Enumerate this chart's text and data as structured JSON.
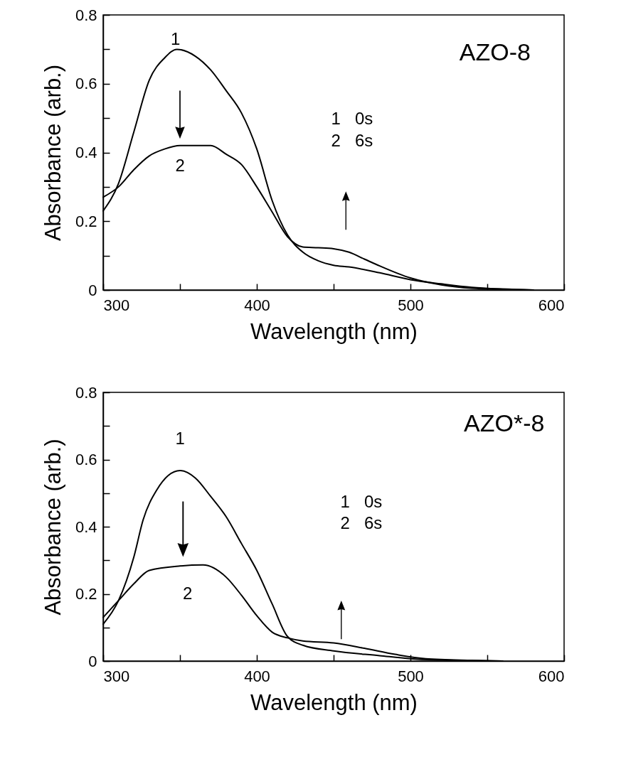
{
  "chart_data": [
    {
      "type": "line",
      "xlabel": "Wavelength (nm)",
      "ylabel": "Absorbance (arb.)",
      "xlim": [
        300,
        600
      ],
      "ylim": [
        0,
        0.8
      ],
      "xticks": [
        300,
        {
          "value": 350,
          "label": null
        },
        400,
        {
          "value": 450,
          "label": null
        },
        500,
        {
          "value": 550,
          "label": null
        },
        600
      ],
      "yticks": [
        0,
        {
          "value": 0.1,
          "label": null
        },
        0.2,
        {
          "value": 0.3,
          "label": null
        },
        0.4,
        {
          "value": 0.5,
          "label": null
        },
        0.6,
        {
          "value": 0.7,
          "label": null
        },
        0.8
      ],
      "grid": false,
      "marker": "none",
      "line_style": "solid",
      "series": [
        {
          "color": "#000000",
          "x": [
            300,
            310,
            320,
            330,
            340,
            348,
            360,
            370,
            380,
            390,
            400,
            410,
            420,
            430,
            440,
            450,
            460,
            480,
            500,
            520,
            540,
            560,
            580
          ],
          "values": [
            0.23,
            0.31,
            0.46,
            0.61,
            0.675,
            0.7,
            0.68,
            0.64,
            0.58,
            0.515,
            0.41,
            0.26,
            0.16,
            0.11,
            0.085,
            0.072,
            0.067,
            0.05,
            0.03,
            0.018,
            0.008,
            0.003,
            0.0
          ]
        },
        {
          "color": "#000000",
          "x": [
            300,
            310,
            320,
            330,
            340,
            350,
            360,
            370,
            380,
            390,
            400,
            410,
            420,
            430,
            440,
            450,
            460,
            470,
            480,
            500,
            520,
            540,
            560,
            580
          ],
          "values": [
            0.27,
            0.3,
            0.35,
            0.39,
            0.41,
            0.42,
            0.42,
            0.42,
            0.395,
            0.365,
            0.3,
            0.227,
            0.155,
            0.125,
            0.123,
            0.12,
            0.11,
            0.09,
            0.07,
            0.035,
            0.015,
            0.005,
            0.002,
            0.0
          ]
        }
      ],
      "annotations": [
        "1",
        "2",
        "AZO-8",
        "1   0s",
        "2   6s"
      ]
    },
    {
      "type": "line",
      "xlabel": "Wavelength (nm)",
      "ylabel": "Absorbance (arb.)",
      "xlim": [
        300,
        600
      ],
      "ylim": [
        0,
        0.8
      ],
      "xticks": [
        300,
        {
          "value": 350,
          "label": null
        },
        400,
        {
          "value": 450,
          "label": null
        },
        500,
        {
          "value": 550,
          "label": null
        },
        600
      ],
      "yticks": [
        0,
        {
          "value": 0.1,
          "label": null
        },
        0.2,
        {
          "value": 0.3,
          "label": null
        },
        0.4,
        {
          "value": 0.5,
          "label": null
        },
        0.6,
        {
          "value": 0.7,
          "label": null
        },
        0.8
      ],
      "grid": false,
      "marker": "none",
      "line_style": "solid",
      "series": [
        {
          "color": "#000000",
          "x": [
            300,
            310,
            320,
            326,
            335,
            350,
            360,
            370,
            380,
            390,
            400,
            410,
            420,
            430,
            450,
            480,
            500,
            520,
            540,
            560
          ],
          "values": [
            0.11,
            0.18,
            0.31,
            0.42,
            0.51,
            0.567,
            0.545,
            0.49,
            0.43,
            0.35,
            0.27,
            0.17,
            0.073,
            0.047,
            0.03,
            0.016,
            0.007,
            0.003,
            0.001,
            0.0
          ]
        },
        {
          "color": "#000000",
          "x": [
            300,
            310,
            320,
            330,
            350,
            365,
            380,
            390,
            400,
            410,
            420,
            430,
            450,
            470,
            490,
            510,
            540,
            560
          ],
          "values": [
            0.13,
            0.18,
            0.23,
            0.27,
            0.283,
            0.286,
            0.25,
            0.196,
            0.135,
            0.086,
            0.069,
            0.06,
            0.054,
            0.038,
            0.02,
            0.007,
            0.002,
            0.0
          ]
        }
      ],
      "annotations": [
        "1",
        "2",
        "AZO*-8",
        "1   0s",
        "2   6s"
      ]
    }
  ]
}
